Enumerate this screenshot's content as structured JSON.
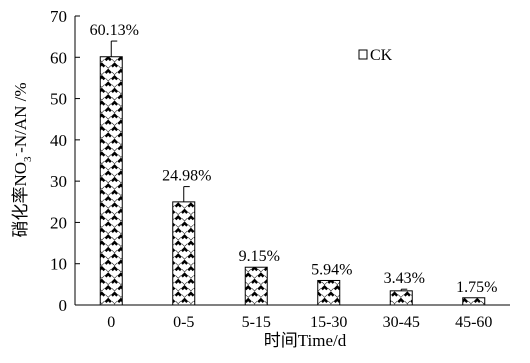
{
  "chart_data": {
    "type": "bar",
    "title": "",
    "xlabel": "时间Time/d",
    "ylabel": {
      "prefix": "硝化率NO",
      "sub": "3",
      "sup": "-",
      "suffix": "-N/AN /%"
    },
    "categories": [
      "0",
      "0-5",
      "5-15",
      "15-30",
      "30-45",
      "45-60"
    ],
    "series": [
      {
        "name": "CK",
        "values": [
          60.13,
          24.98,
          9.15,
          5.94,
          3.43,
          1.75
        ],
        "errors": [
          3.8,
          3.7,
          0.0,
          0.0,
          0.4,
          0.0
        ],
        "data_labels": [
          "60.13%",
          "24.98%",
          "9.15%",
          "5.94%",
          "3.43%",
          "1.75%"
        ]
      }
    ],
    "ylim": [
      0,
      70
    ],
    "yticks": [
      0,
      10,
      20,
      30,
      40,
      50,
      60,
      70
    ],
    "grid": false,
    "legend_position": "top-right",
    "pattern": "crosshatch-diamond",
    "colors": {
      "bar_fill": "#ffffff",
      "bar_pattern": "#000000",
      "axis": "#000000"
    }
  }
}
